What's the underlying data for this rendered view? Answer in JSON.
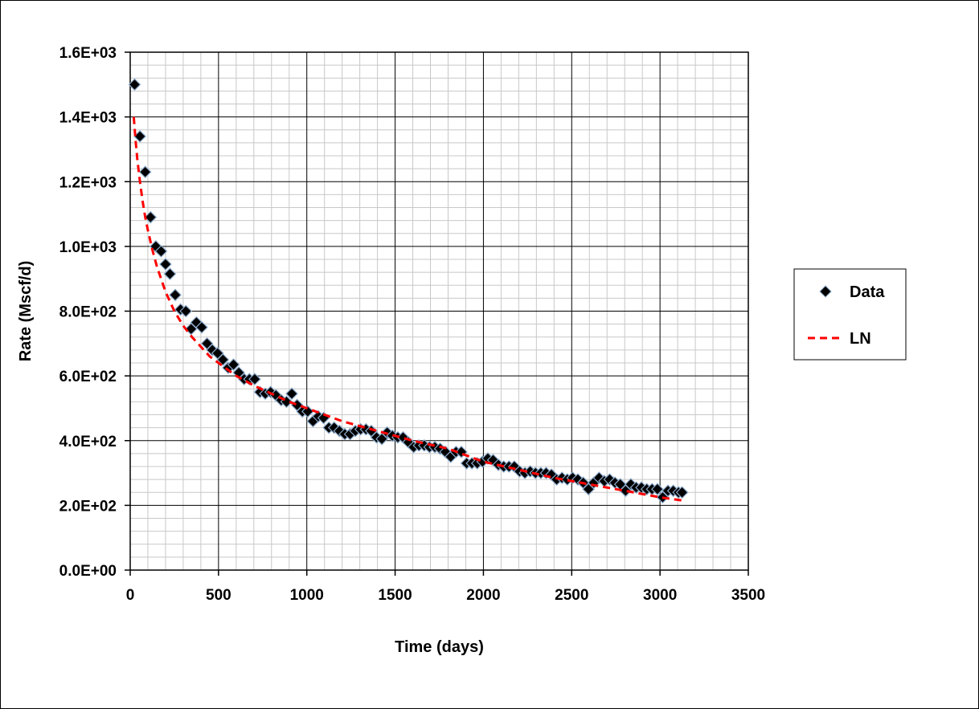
{
  "chart_data": {
    "type": "scatter",
    "title": "",
    "xlabel": "Time (days)",
    "ylabel": "Rate (Mscf/d)",
    "xlim": [
      0,
      3500
    ],
    "ylim": [
      0,
      1600
    ],
    "x_major_ticks": [
      0,
      500,
      1000,
      1500,
      2000,
      2500,
      3000,
      3500
    ],
    "y_major_ticks": [
      0,
      200,
      400,
      600,
      800,
      1000,
      1200,
      1400,
      1600
    ],
    "x_tick_labels": [
      "0",
      "500",
      "1000",
      "1500",
      "2000",
      "2500",
      "3000",
      "3500"
    ],
    "y_tick_labels": [
      "0.0E+00",
      "2.0E+02",
      "4.0E+02",
      "6.0E+02",
      "8.0E+02",
      "1.0E+03",
      "1.2E+03",
      "1.4E+03",
      "1.6E+03"
    ],
    "x_minor_step": 100,
    "y_minor_step": 40,
    "grid": true,
    "legend_position": "right",
    "series": [
      {
        "name": "Data",
        "kind": "scatter",
        "marker": "diamond",
        "color": "#000000",
        "edge_color": "#8aa8c8",
        "x": [
          25,
          55,
          85,
          115,
          145,
          175,
          200,
          225,
          255,
          285,
          315,
          345,
          375,
          405,
          435,
          465,
          495,
          525,
          555,
          585,
          615,
          645,
          675,
          705,
          735,
          765,
          795,
          825,
          855,
          885,
          915,
          945,
          975,
          1005,
          1035,
          1065,
          1095,
          1125,
          1155,
          1185,
          1215,
          1245,
          1275,
          1305,
          1335,
          1365,
          1395,
          1425,
          1455,
          1485,
          1515,
          1545,
          1575,
          1605,
          1635,
          1665,
          1695,
          1725,
          1755,
          1785,
          1815,
          1845,
          1875,
          1905,
          1935,
          1965,
          1995,
          2025,
          2055,
          2085,
          2115,
          2145,
          2175,
          2205,
          2235,
          2265,
          2295,
          2325,
          2355,
          2385,
          2415,
          2445,
          2475,
          2505,
          2535,
          2565,
          2595,
          2625,
          2655,
          2685,
          2715,
          2745,
          2775,
          2805,
          2835,
          2865,
          2895,
          2925,
          2955,
          2985,
          3015,
          3045,
          3075,
          3105,
          3125
        ],
        "y": [
          1500,
          1340,
          1230,
          1090,
          1000,
          985,
          945,
          915,
          850,
          805,
          800,
          745,
          765,
          750,
          700,
          680,
          670,
          650,
          625,
          635,
          610,
          590,
          590,
          590,
          550,
          545,
          550,
          540,
          525,
          520,
          545,
          510,
          490,
          490,
          460,
          475,
          470,
          440,
          440,
          430,
          420,
          420,
          430,
          435,
          435,
          430,
          410,
          405,
          425,
          415,
          410,
          410,
          395,
          380,
          385,
          385,
          380,
          380,
          375,
          365,
          350,
          365,
          365,
          330,
          330,
          330,
          335,
          345,
          340,
          325,
          320,
          320,
          320,
          305,
          300,
          305,
          300,
          300,
          300,
          295,
          280,
          285,
          280,
          285,
          280,
          270,
          250,
          270,
          285,
          275,
          280,
          270,
          265,
          245,
          265,
          255,
          255,
          250,
          250,
          250,
          225,
          245,
          245,
          240,
          240
        ]
      },
      {
        "name": "LN",
        "kind": "line",
        "style": "dashed",
        "color": "#ff0000",
        "x": [
          20,
          30,
          40,
          55,
          70,
          85,
          100,
          125,
          150,
          175,
          200,
          250,
          300,
          350,
          400,
          450,
          500,
          600,
          700,
          800,
          900,
          1000,
          1200,
          1400,
          1600,
          1800,
          2000,
          2200,
          2400,
          2600,
          2800,
          3000,
          3125
        ],
        "y": [
          1400,
          1330,
          1270,
          1200,
          1140,
          1090,
          1050,
          990,
          940,
          900,
          860,
          800,
          755,
          720,
          690,
          660,
          640,
          600,
          570,
          545,
          520,
          500,
          460,
          430,
          400,
          375,
          335,
          310,
          285,
          265,
          245,
          225,
          215
        ]
      }
    ]
  }
}
